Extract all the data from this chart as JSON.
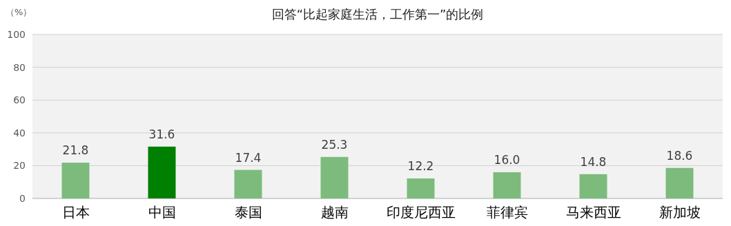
{
  "chart_data": {
    "type": "bar",
    "title": "回答“比起家庭生活，工作第一”的比例",
    "ylabel": "（%）",
    "categories": [
      "日本",
      "中国",
      "泰国",
      "越南",
      "印度尼西亚",
      "菲律宾",
      "马来西亚",
      "新加坡"
    ],
    "values": [
      21.8,
      31.6,
      17.4,
      25.3,
      12.2,
      16.0,
      14.8,
      18.6
    ],
    "value_labels": [
      "21.8",
      "31.6",
      "17.4",
      "25.3",
      "12.2",
      "16.0",
      "14.8",
      "18.6"
    ],
    "colors": [
      "#7cbb7c",
      "#008000",
      "#7cbb7c",
      "#7cbb7c",
      "#7cbb7c",
      "#7cbb7c",
      "#7cbb7c",
      "#7cbb7c"
    ],
    "ylim": [
      0,
      100
    ],
    "yticks": [
      0,
      20,
      40,
      60,
      80,
      100
    ],
    "grid": "y"
  }
}
